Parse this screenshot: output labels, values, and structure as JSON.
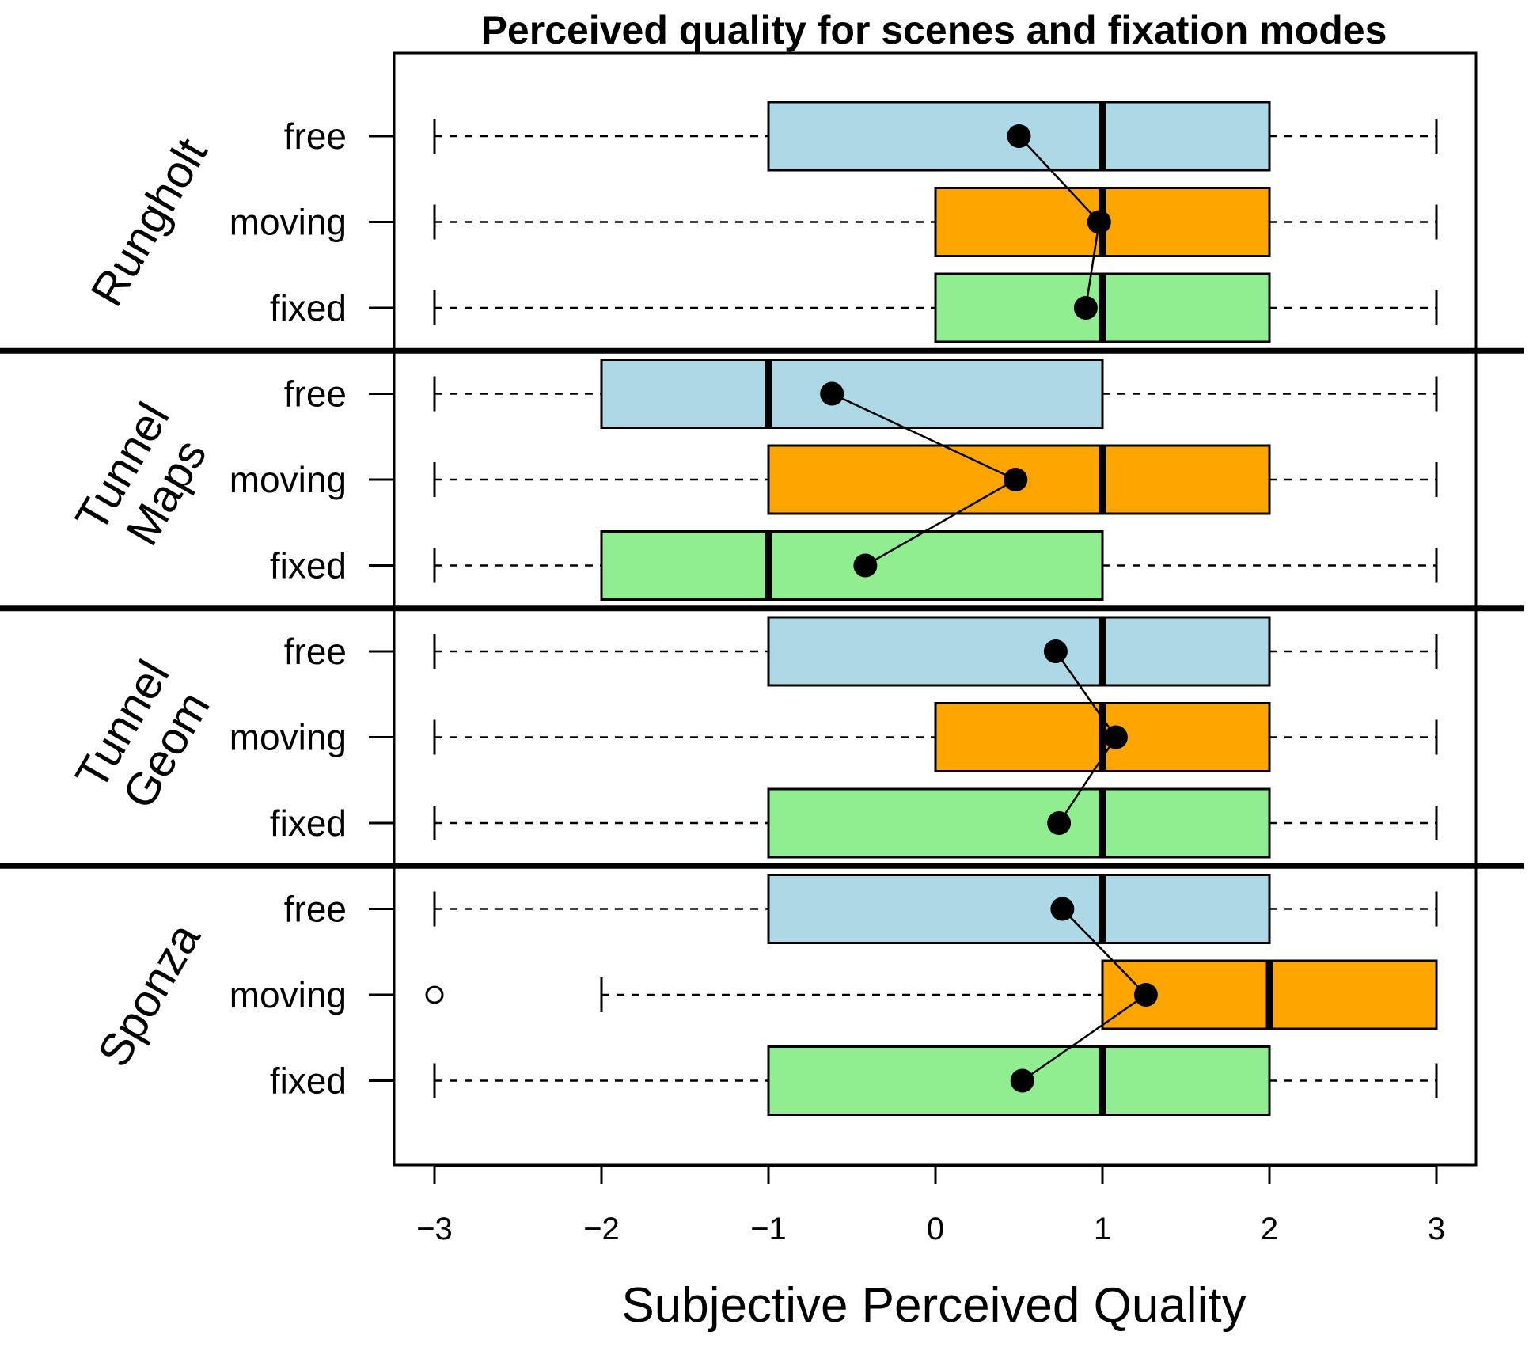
{
  "chart_data": {
    "type": "boxplot-horizontal",
    "title": "Perceived quality for scenes and fixation modes",
    "xlabel": "Subjective Perceived Quality",
    "xlim": [
      -3.25,
      3.25
    ],
    "xticks": [
      -3,
      -2,
      -1,
      0,
      1,
      2,
      3
    ],
    "xtick_labels": [
      "−3",
      "−2",
      "−1",
      "0",
      "1",
      "2",
      "3"
    ],
    "colors": {
      "free": "#add8e6",
      "moving": "#ffa500",
      "fixed": "#90ee90"
    },
    "groups": [
      {
        "scene_lines": [
          "Rungholt"
        ],
        "boxes": [
          {
            "label": "free",
            "mode": "free",
            "min": -3,
            "q1": -1,
            "median": 1,
            "q3": 2,
            "max": 3,
            "mean": 0.5,
            "outliers": []
          },
          {
            "label": "moving",
            "mode": "moving",
            "min": -3,
            "q1": 0,
            "median": 1,
            "q3": 2,
            "max": 3,
            "mean": 0.98,
            "outliers": []
          },
          {
            "label": "fixed",
            "mode": "fixed",
            "min": -3,
            "q1": 0,
            "median": 1,
            "q3": 2,
            "max": 3,
            "mean": 0.9,
            "outliers": []
          }
        ]
      },
      {
        "scene_lines": [
          "Tunnel",
          "Maps"
        ],
        "boxes": [
          {
            "label": "free",
            "mode": "free",
            "min": -3,
            "q1": -2,
            "median": -1,
            "q3": 1,
            "max": 3,
            "mean": -0.62,
            "outliers": []
          },
          {
            "label": "moving",
            "mode": "moving",
            "min": -3,
            "q1": -1,
            "median": 1,
            "q3": 2,
            "max": 3,
            "mean": 0.48,
            "outliers": []
          },
          {
            "label": "fixed",
            "mode": "fixed",
            "min": -3,
            "q1": -2,
            "median": -1,
            "q3": 1,
            "max": 3,
            "mean": -0.42,
            "outliers": []
          }
        ]
      },
      {
        "scene_lines": [
          "Tunnel",
          "Geom"
        ],
        "boxes": [
          {
            "label": "free",
            "mode": "free",
            "min": -3,
            "q1": -1,
            "median": 1,
            "q3": 2,
            "max": 3,
            "mean": 0.72,
            "outliers": []
          },
          {
            "label": "moving",
            "mode": "moving",
            "min": -3,
            "q1": 0,
            "median": 1,
            "q3": 2,
            "max": 3,
            "mean": 1.08,
            "outliers": []
          },
          {
            "label": "fixed",
            "mode": "fixed",
            "min": -3,
            "q1": -1,
            "median": 1,
            "q3": 2,
            "max": 3,
            "mean": 0.74,
            "outliers": []
          }
        ]
      },
      {
        "scene_lines": [
          "Sponza"
        ],
        "boxes": [
          {
            "label": "free",
            "mode": "free",
            "min": -3,
            "q1": -1,
            "median": 1,
            "q3": 2,
            "max": 3,
            "mean": 0.76,
            "outliers": []
          },
          {
            "label": "moving",
            "mode": "moving",
            "min": -2,
            "q1": 1,
            "median": 2,
            "q3": 3,
            "max": 3,
            "mean": 1.26,
            "outliers": [
              -3
            ]
          },
          {
            "label": "fixed",
            "mode": "fixed",
            "min": -3,
            "q1": -1,
            "median": 1,
            "q3": 2,
            "max": 3,
            "mean": 0.52,
            "outliers": []
          }
        ]
      }
    ]
  }
}
